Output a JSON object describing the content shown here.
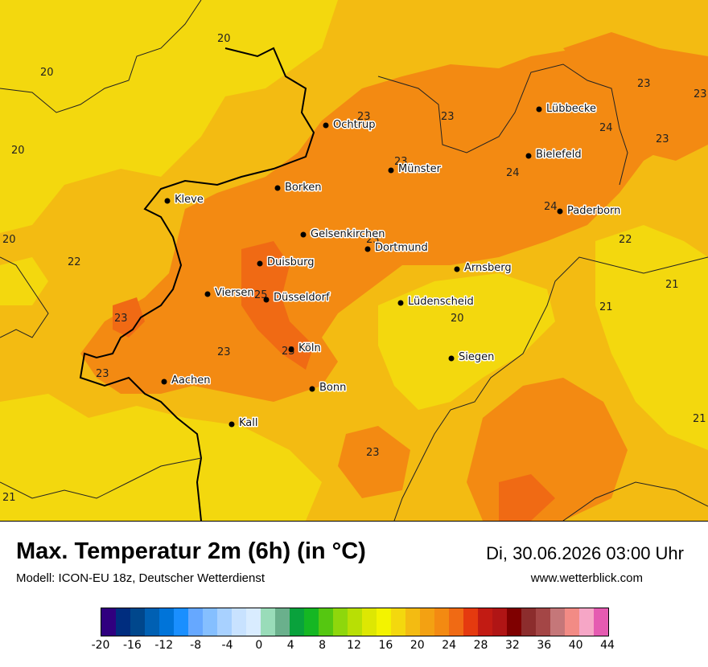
{
  "header": {
    "title": "Max. Temperatur 2m (6h) (in °C)",
    "model": "Modell: ICON-EU 18z, Deutscher Wetterdienst",
    "datetime": "Di, 30.06.2026 03:00 Uhr",
    "website": "www.wetterblick.com"
  },
  "colors": {
    "t20": "#f3d80e",
    "t22": "#f3bb12",
    "t24": "#f38a12",
    "t26": "#f06a14",
    "border_major": "#000000",
    "border_minor": "#222222"
  },
  "cities": [
    {
      "name": "Lübbecke",
      "kind": "city"
    },
    {
      "name": "Ochtrup",
      "kind": "city"
    },
    {
      "name": "Bielefeld",
      "kind": "city"
    },
    {
      "name": "Münster",
      "kind": "city"
    },
    {
      "name": "Borken",
      "kind": "city"
    },
    {
      "name": "Kleve",
      "kind": "city"
    },
    {
      "name": "Paderborn",
      "kind": "city"
    },
    {
      "name": "Gelsenkirchen",
      "kind": "city"
    },
    {
      "name": "Dortmund",
      "kind": "city"
    },
    {
      "name": "Duisburg",
      "kind": "city"
    },
    {
      "name": "Arnsberg",
      "kind": "city"
    },
    {
      "name": "Viersen",
      "kind": "city"
    },
    {
      "name": "Düsseldorf",
      "kind": "city"
    },
    {
      "name": "Lüdenscheid",
      "kind": "city"
    },
    {
      "name": "Köln",
      "kind": "city"
    },
    {
      "name": "Siegen",
      "kind": "city"
    },
    {
      "name": "Aachen",
      "kind": "city"
    },
    {
      "name": "Bonn",
      "kind": "city"
    },
    {
      "name": "Kall",
      "kind": "city"
    }
  ],
  "isolines": [
    "20",
    "20",
    "20",
    "20",
    "22",
    "23",
    "23",
    "23",
    "23",
    "23",
    "24",
    "24",
    "24",
    "23",
    "23",
    "22",
    "21",
    "21",
    "21",
    "20",
    "23",
    "23",
    "23",
    "23",
    "25",
    "23",
    "20",
    "21",
    "24"
  ],
  "legend": {
    "colors": [
      "#30007f",
      "#002d7f",
      "#00478c",
      "#0060b3",
      "#0074d9",
      "#1a8fff",
      "#66a8ff",
      "#85bfff",
      "#a8d1ff",
      "#c8e2ff",
      "#d9ecff",
      "#99dcb9",
      "#6ab08c",
      "#09a23c",
      "#15b723",
      "#55c711",
      "#8ed70c",
      "#b8df05",
      "#dde703",
      "#f3f300",
      "#f3d80e",
      "#f3bb12",
      "#f3a112",
      "#f38a12",
      "#f06a14",
      "#e53a0f",
      "#c21b13",
      "#b01515",
      "#7f0000",
      "#8c2d2d",
      "#a44646",
      "#c57779",
      "#f28b85",
      "#f6a6c6",
      "#e55bb1"
    ],
    "ticks": [
      "-20",
      "-16",
      "-12",
      "-8",
      "-4",
      "0",
      "4",
      "8",
      "12",
      "16",
      "20",
      "24",
      "28",
      "32",
      "36",
      "40",
      "44"
    ]
  }
}
